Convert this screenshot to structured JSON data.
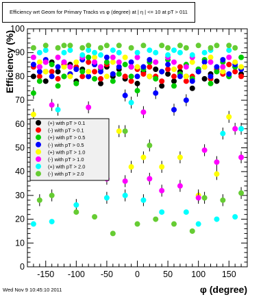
{
  "chart_data": {
    "type": "scatter",
    "title": "Efficiency wrt Geom for Primary Tracks vs φ (degree) at | η | <= 10 at pT > 011",
    "xlabel": "φ (degree)",
    "ylabel": "Efficiency (%)",
    "xlim": [
      -180,
      180
    ],
    "ylim": [
      0,
      100
    ],
    "xticks": [
      -150,
      -100,
      -50,
      0,
      50,
      100,
      150
    ],
    "yticks": [
      0,
      10,
      20,
      30,
      40,
      50,
      60,
      70,
      80,
      90,
      100
    ],
    "grid": false,
    "legend_position": "middle-left",
    "series": [
      {
        "name": "(+) with pT > 0.1",
        "color": "#000000",
        "x": [
          -170,
          -160,
          -150,
          -140,
          -130,
          -120,
          -110,
          -100,
          -90,
          -80,
          -70,
          -60,
          -50,
          -40,
          -30,
          -20,
          -10,
          0,
          10,
          20,
          30,
          40,
          50,
          60,
          70,
          80,
          90,
          100,
          110,
          120,
          130,
          140,
          150,
          160,
          170
        ],
        "y": [
          80,
          84,
          78,
          86,
          82,
          80,
          85,
          78,
          83,
          80,
          85,
          77,
          84,
          80,
          83,
          79,
          84,
          77,
          82,
          80,
          83,
          76,
          81,
          78,
          82,
          80,
          75,
          83,
          79,
          81,
          78,
          82,
          80,
          84,
          81
        ]
      },
      {
        "name": "(-) with pT > 0.1",
        "color": "#ff0000",
        "x": [
          -170,
          -160,
          -150,
          -140,
          -130,
          -120,
          -110,
          -100,
          -90,
          -80,
          -70,
          -60,
          -50,
          -40,
          -30,
          -20,
          -10,
          0,
          10,
          20,
          30,
          40,
          50,
          60,
          70,
          80,
          90,
          100,
          110,
          120,
          130,
          140,
          150,
          160,
          170
        ],
        "y": [
          84,
          80,
          86,
          82,
          79,
          85,
          81,
          84,
          80,
          86,
          82,
          79,
          85,
          81,
          84,
          80,
          78,
          83,
          81,
          84,
          80,
          78,
          83,
          80,
          84,
          78,
          80,
          82,
          84,
          79,
          83,
          81,
          85,
          82,
          80
        ]
      },
      {
        "name": "(+) with pT > 0.5",
        "color": "#00cc00",
        "x": [
          -170,
          -160,
          -150,
          -140,
          -130,
          -120,
          -110,
          -100,
          -90,
          -80,
          -70,
          -60,
          -50,
          -40,
          -30,
          -20,
          -10,
          0,
          10,
          20,
          30,
          40,
          50,
          60,
          70,
          80,
          90,
          100,
          110,
          120,
          130,
          140,
          150,
          160,
          170
        ],
        "y": [
          73,
          78,
          82,
          85,
          76,
          80,
          84,
          77,
          82,
          88,
          79,
          83,
          86,
          78,
          81,
          85,
          80,
          74,
          83,
          86,
          79,
          82,
          87,
          76,
          81,
          85,
          79,
          83,
          87,
          77,
          82,
          86,
          80,
          84,
          88
        ]
      },
      {
        "name": "(-) with pT > 0.5",
        "color": "#0000ff",
        "x": [
          -170,
          -160,
          -150,
          -140,
          -130,
          -120,
          -110,
          -100,
          -90,
          -80,
          -70,
          -60,
          -50,
          -40,
          -30,
          -20,
          -10,
          0,
          10,
          20,
          30,
          40,
          50,
          60,
          70,
          80,
          90,
          100,
          110,
          120,
          130,
          140,
          150,
          160,
          170
        ],
        "y": [
          85,
          82,
          87,
          80,
          84,
          86,
          81,
          83,
          87,
          80,
          85,
          82,
          88,
          81,
          84,
          72,
          86,
          80,
          84,
          87,
          73,
          82,
          85,
          66,
          80,
          70,
          78,
          82,
          86,
          80,
          84,
          87,
          81,
          85,
          83
        ]
      },
      {
        "name": "(+) with pT > 1.0",
        "color": "#ffff00",
        "x": [
          -170,
          -160,
          -150,
          -140,
          -130,
          -120,
          -110,
          -100,
          -90,
          -80,
          -70,
          -60,
          -50,
          -40,
          -30,
          -20,
          -10,
          0,
          10,
          20,
          30,
          40,
          50,
          60,
          70,
          80,
          90,
          100,
          110,
          120,
          130,
          140,
          150,
          160,
          170
        ],
        "y": [
          64,
          86,
          82,
          57,
          88,
          84,
          80,
          86,
          47,
          82,
          88,
          84,
          80,
          86,
          57,
          88,
          42,
          84,
          46,
          80,
          86,
          42,
          88,
          83,
          46,
          80,
          86,
          30,
          84,
          88,
          39,
          82,
          63,
          86,
          84
        ]
      },
      {
        "name": "(-) with pT > 1.0",
        "color": "#ff00ff",
        "x": [
          -170,
          -160,
          -150,
          -140,
          -130,
          -120,
          -110,
          -100,
          -90,
          -80,
          -70,
          -60,
          -50,
          -40,
          -30,
          -20,
          -10,
          0,
          10,
          20,
          30,
          40,
          50,
          60,
          70,
          80,
          90,
          100,
          110,
          120,
          130,
          140,
          150,
          160,
          170
        ],
        "y": [
          88,
          84,
          86,
          68,
          88,
          86,
          84,
          40,
          88,
          67,
          86,
          84,
          37,
          88,
          86,
          36,
          84,
          88,
          65,
          37,
          86,
          32,
          88,
          86,
          34,
          84,
          88,
          29,
          49,
          86,
          44,
          84,
          88,
          58,
          46
        ]
      },
      {
        "name": "(+) with pT > 2.0",
        "color": "#00ffff",
        "x": [
          -170,
          -160,
          -150,
          -140,
          -130,
          -120,
          -110,
          -100,
          -90,
          -80,
          -70,
          -60,
          -50,
          -40,
          -30,
          -20,
          -10,
          0,
          10,
          20,
          30,
          40,
          50,
          60,
          70,
          80,
          90,
          100,
          110,
          120,
          130,
          140,
          150,
          160,
          170
        ],
        "y": [
          18,
          90,
          91,
          19,
          66,
          90,
          91,
          26,
          89,
          91,
          90,
          89,
          29,
          91,
          90,
          30,
          69,
          90,
          28,
          91,
          90,
          23,
          89,
          91,
          90,
          23,
          89,
          18,
          90,
          91,
          20,
          56,
          91,
          21,
          58
        ]
      },
      {
        "name": "(-) with pT > 2.0",
        "color": "#66cc33",
        "x": [
          -170,
          -160,
          -150,
          -140,
          -130,
          -120,
          -110,
          -100,
          -90,
          -80,
          -70,
          -60,
          -50,
          -40,
          -30,
          -20,
          -10,
          0,
          10,
          20,
          30,
          40,
          50,
          60,
          70,
          80,
          90,
          100,
          110,
          120,
          130,
          140,
          150,
          160,
          170
        ],
        "y": [
          92,
          28,
          93,
          30,
          92,
          93,
          93,
          23,
          92,
          93,
          21,
          92,
          93,
          14,
          93,
          57,
          92,
          18,
          93,
          51,
          20,
          93,
          92,
          18,
          93,
          92,
          15,
          93,
          29,
          92,
          93,
          28,
          93,
          92,
          31
        ]
      }
    ]
  },
  "footer": {
    "timestamp": "Wed Nov  9 10:45:10 2011"
  }
}
